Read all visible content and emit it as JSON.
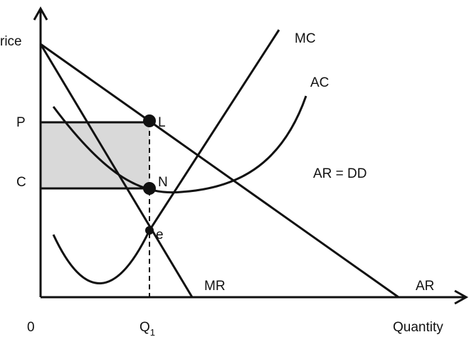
{
  "axis": {
    "y_label": "rice",
    "x_label": "Quantity",
    "origin": "0",
    "price_levels": [
      "P",
      "C"
    ],
    "quantity_level": {
      "text": "Q",
      "subscript": "1"
    }
  },
  "curves": {
    "mc": "MC",
    "ac": "AC",
    "demand": "AR = DD",
    "mr": "MR",
    "ar": "AR"
  },
  "points": [
    "L",
    "N",
    "e"
  ]
}
